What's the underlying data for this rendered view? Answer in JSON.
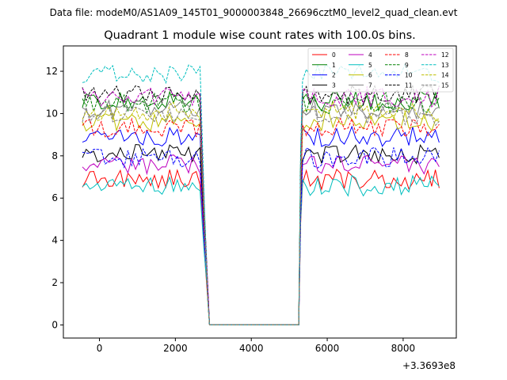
{
  "header": {
    "data_file": "Data file: modeM0/AS1A09_145T01_9000003848_26696cztM0_level2_quad_clean.evt"
  },
  "chart_data": {
    "type": "line",
    "title": "Quadrant 1 module wise count rates with 100.0s bins.",
    "xlabel": "",
    "ylabel": "",
    "x_offset_label": "+3.3693e8",
    "xlim": [
      -950,
      9400
    ],
    "ylim": [
      -0.62,
      13.2
    ],
    "x_ticks": [
      0,
      2000,
      4000,
      6000,
      8000
    ],
    "x_tick_labels": [
      "0",
      "2000",
      "4000",
      "6000",
      "8000"
    ],
    "y_ticks": [
      0,
      2,
      4,
      6,
      8,
      10,
      12
    ],
    "y_tick_labels": [
      "0",
      "2",
      "4",
      "6",
      "8",
      "10",
      "12"
    ],
    "bin_width_s": 100,
    "segments": [
      {
        "start": -450,
        "end": 2650
      },
      {
        "start": 5350,
        "end": 8950
      }
    ],
    "gap": {
      "start": 2900,
      "end": 5250,
      "value": 0
    },
    "legend_position": "top-right",
    "series": [
      {
        "name": "0",
        "color": "#ff0000",
        "dash": "solid",
        "level": 6.9
      },
      {
        "name": "1",
        "color": "#008000",
        "dash": "solid",
        "level": 10.6
      },
      {
        "name": "2",
        "color": "#0000ff",
        "dash": "solid",
        "level": 8.9
      },
      {
        "name": "3",
        "color": "#000000",
        "dash": "solid",
        "level": 8.1
      },
      {
        "name": "4",
        "color": "#bf00bf",
        "dash": "solid",
        "level": 7.6
      },
      {
        "name": "5",
        "color": "#00bfbf",
        "dash": "solid",
        "level": 6.6
      },
      {
        "name": "6",
        "color": "#bfbf00",
        "dash": "solid",
        "level": 9.6
      },
      {
        "name": "7",
        "color": "#808080",
        "dash": "solid",
        "level": 10.2
      },
      {
        "name": "8",
        "color": "#ff0000",
        "dash": "dashed",
        "level": 9.3
      },
      {
        "name": "9",
        "color": "#008000",
        "dash": "dashed",
        "level": 10.5
      },
      {
        "name": "10",
        "color": "#0000ff",
        "dash": "dashed",
        "level": 7.9
      },
      {
        "name": "11",
        "color": "#000000",
        "dash": "dashed",
        "level": 10.9
      },
      {
        "name": "12",
        "color": "#bf00bf",
        "dash": "dashed",
        "level": 10.8
      },
      {
        "name": "13",
        "color": "#00bfbf",
        "dash": "dashed",
        "level": 11.9
      },
      {
        "name": "14",
        "color": "#bfbf00",
        "dash": "dashed",
        "level": 10.1
      },
      {
        "name": "15",
        "color": "#808080",
        "dash": "dashed",
        "level": 9.9
      }
    ]
  }
}
